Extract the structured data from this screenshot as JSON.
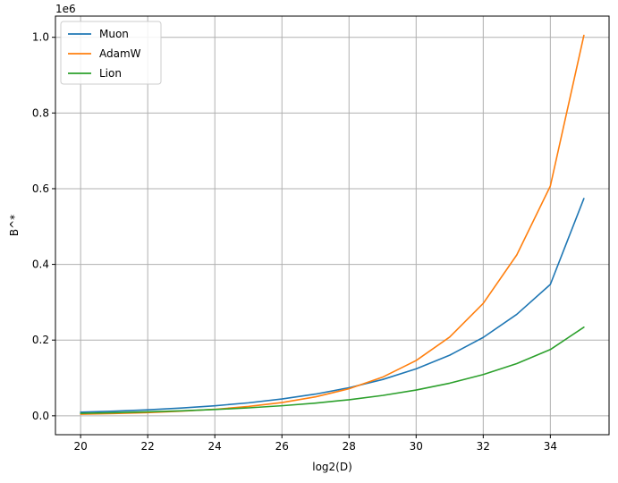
{
  "chart_data": {
    "type": "line",
    "xlabel": "log2(D)",
    "ylabel": "B^*",
    "y_offset_label": "1e6",
    "xlim": [
      19.25,
      35.75
    ],
    "ylim": [
      -0.05,
      1.056
    ],
    "xticks": [
      20,
      22,
      24,
      26,
      28,
      30,
      32,
      34
    ],
    "xtick_labels": [
      "20",
      "22",
      "24",
      "26",
      "28",
      "30",
      "32",
      "34"
    ],
    "yticks": [
      0.0,
      0.2,
      0.4,
      0.6,
      0.8,
      1.0
    ],
    "ytick_labels": [
      "0.0",
      "0.2",
      "0.4",
      "0.6",
      "0.8",
      "1.0"
    ],
    "grid": true,
    "legend_position": "top-left",
    "series": [
      {
        "name": "Muon",
        "color": "#1f77b4",
        "x": [
          20,
          21,
          22,
          23,
          24,
          25,
          26,
          27,
          28,
          29,
          30,
          31,
          32,
          33,
          34,
          35
        ],
        "y": [
          0.0095,
          0.0122,
          0.0158,
          0.0204,
          0.0264,
          0.0342,
          0.0443,
          0.0573,
          0.0741,
          0.0958,
          0.124,
          0.16,
          0.207,
          0.268,
          0.347,
          0.574
        ]
      },
      {
        "name": "AdamW",
        "color": "#ff7f0e",
        "x": [
          20,
          21,
          22,
          23,
          24,
          25,
          26,
          27,
          28,
          29,
          30,
          31,
          32,
          33,
          34,
          35
        ],
        "y": [
          0.0041,
          0.0059,
          0.0084,
          0.012,
          0.0171,
          0.0245,
          0.035,
          0.05,
          0.0714,
          0.102,
          0.146,
          0.208,
          0.297,
          0.425,
          0.607,
          1.005
        ]
      },
      {
        "name": "Lion",
        "color": "#2ca02c",
        "x": [
          20,
          21,
          22,
          23,
          24,
          25,
          26,
          27,
          28,
          29,
          30,
          31,
          32,
          33,
          34,
          35
        ],
        "y": [
          0.0064,
          0.0081,
          0.0103,
          0.013,
          0.0165,
          0.0209,
          0.0265,
          0.0335,
          0.0424,
          0.0537,
          0.068,
          0.0861,
          0.109,
          0.138,
          0.175,
          0.234
        ]
      }
    ]
  }
}
